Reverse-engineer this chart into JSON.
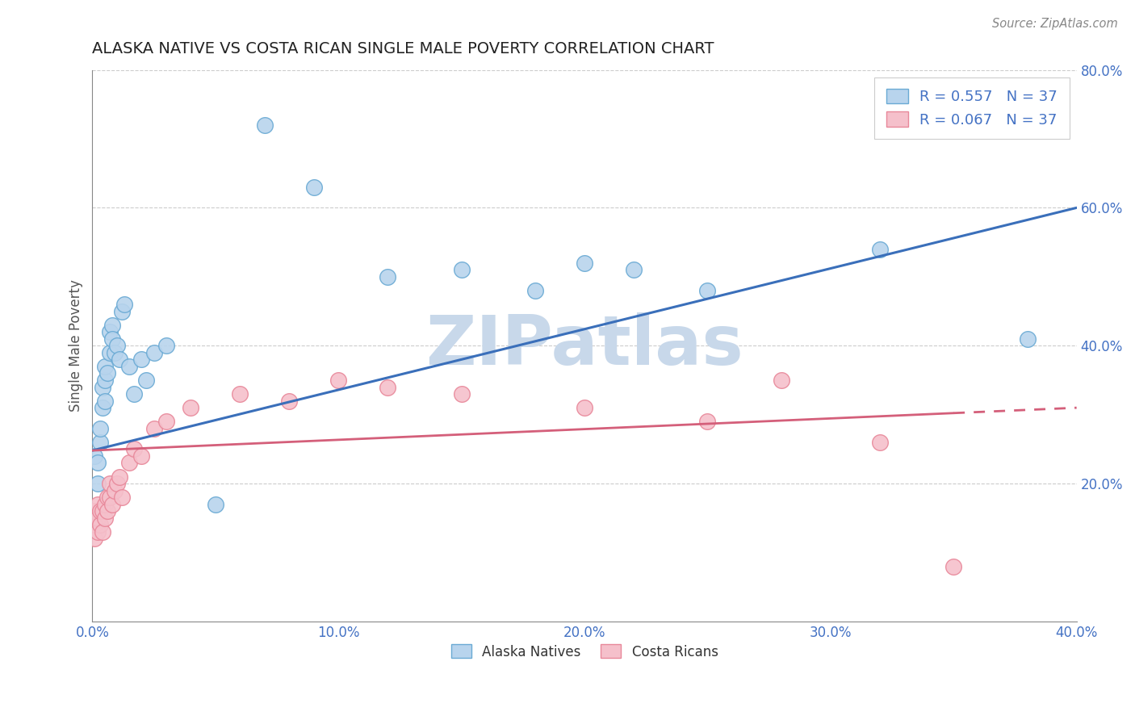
{
  "title": "ALASKA NATIVE VS COSTA RICAN SINGLE MALE POVERTY CORRELATION CHART",
  "source": "Source: ZipAtlas.com",
  "ylabel": "Single Male Poverty",
  "xlim": [
    0,
    0.4
  ],
  "ylim": [
    0,
    0.8
  ],
  "xticks": [
    0.0,
    0.1,
    0.2,
    0.3,
    0.4
  ],
  "yticks": [
    0.2,
    0.4,
    0.6,
    0.8
  ],
  "xtick_labels": [
    "0.0%",
    "10.0%",
    "20.0%",
    "30.0%",
    "40.0%"
  ],
  "ytick_labels": [
    "20.0%",
    "40.0%",
    "60.0%",
    "80.0%"
  ],
  "alaska_R": 0.557,
  "alaska_N": 37,
  "costa_R": 0.067,
  "costa_N": 37,
  "alaska_color": "#b8d4ed",
  "alaska_edge_color": "#6aaad4",
  "costa_color": "#f5c0cb",
  "costa_edge_color": "#e8889a",
  "trendline_alaska_color": "#3a6fba",
  "trendline_costa_color": "#d45f7a",
  "background_color": "#ffffff",
  "watermark_color": "#c8d8ea",
  "tick_color": "#4472c4",
  "alaska_x": [
    0.001,
    0.002,
    0.002,
    0.003,
    0.003,
    0.004,
    0.004,
    0.005,
    0.005,
    0.005,
    0.006,
    0.007,
    0.007,
    0.008,
    0.008,
    0.009,
    0.01,
    0.011,
    0.012,
    0.013,
    0.015,
    0.017,
    0.02,
    0.022,
    0.025,
    0.03,
    0.05,
    0.07,
    0.09,
    0.12,
    0.15,
    0.18,
    0.2,
    0.22,
    0.25,
    0.32,
    0.38
  ],
  "alaska_y": [
    0.24,
    0.2,
    0.23,
    0.26,
    0.28,
    0.31,
    0.34,
    0.32,
    0.35,
    0.37,
    0.36,
    0.39,
    0.42,
    0.43,
    0.41,
    0.39,
    0.4,
    0.38,
    0.45,
    0.46,
    0.37,
    0.33,
    0.38,
    0.35,
    0.39,
    0.4,
    0.17,
    0.72,
    0.63,
    0.5,
    0.51,
    0.48,
    0.52,
    0.51,
    0.48,
    0.54,
    0.41
  ],
  "costa_x": [
    0.001,
    0.001,
    0.001,
    0.002,
    0.002,
    0.002,
    0.003,
    0.003,
    0.004,
    0.004,
    0.005,
    0.005,
    0.006,
    0.006,
    0.007,
    0.007,
    0.008,
    0.009,
    0.01,
    0.011,
    0.012,
    0.015,
    0.017,
    0.02,
    0.025,
    0.03,
    0.04,
    0.06,
    0.08,
    0.1,
    0.12,
    0.15,
    0.2,
    0.25,
    0.28,
    0.32,
    0.35
  ],
  "costa_y": [
    0.12,
    0.14,
    0.16,
    0.13,
    0.15,
    0.17,
    0.14,
    0.16,
    0.13,
    0.16,
    0.15,
    0.17,
    0.16,
    0.18,
    0.18,
    0.2,
    0.17,
    0.19,
    0.2,
    0.21,
    0.18,
    0.23,
    0.25,
    0.24,
    0.28,
    0.29,
    0.31,
    0.33,
    0.32,
    0.35,
    0.34,
    0.33,
    0.31,
    0.29,
    0.35,
    0.26,
    0.08
  ],
  "trendline_alaska_x0": 0.0,
  "trendline_alaska_y0": 0.248,
  "trendline_alaska_x1": 0.4,
  "trendline_alaska_y1": 0.6,
  "trendline_costa_x0": 0.0,
  "trendline_costa_y0": 0.248,
  "trendline_costa_x1": 0.4,
  "trendline_costa_y1": 0.31
}
